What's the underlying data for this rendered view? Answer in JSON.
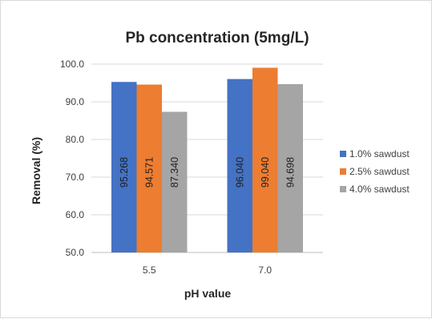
{
  "chart_data": {
    "type": "bar",
    "title": "Pb concentration (5mg/L)",
    "xlabel": "pH value",
    "ylabel": "Removal (%)",
    "categories": [
      "5.5",
      "7.0"
    ],
    "ylim": [
      50,
      100
    ],
    "yticks": [
      50,
      60,
      70,
      80,
      90,
      100
    ],
    "ytick_labels": [
      "50.0",
      "60.0",
      "70.0",
      "80.0",
      "90.0",
      "100.0"
    ],
    "grid": true,
    "legend_position": "right",
    "series": [
      {
        "name": "1.0% sawdust",
        "color": "#4472c4",
        "values": [
          95.268,
          96.04
        ],
        "labels": [
          "95.268",
          "96.040"
        ]
      },
      {
        "name": "2.5% sawdust",
        "color": "#ed7d31",
        "values": [
          94.571,
          99.04
        ],
        "labels": [
          "94.571",
          "99.040"
        ]
      },
      {
        "name": "4.0% sawdust",
        "color": "#a5a5a5",
        "values": [
          87.34,
          94.698
        ],
        "labels": [
          "87.340",
          "94.698"
        ]
      }
    ]
  }
}
